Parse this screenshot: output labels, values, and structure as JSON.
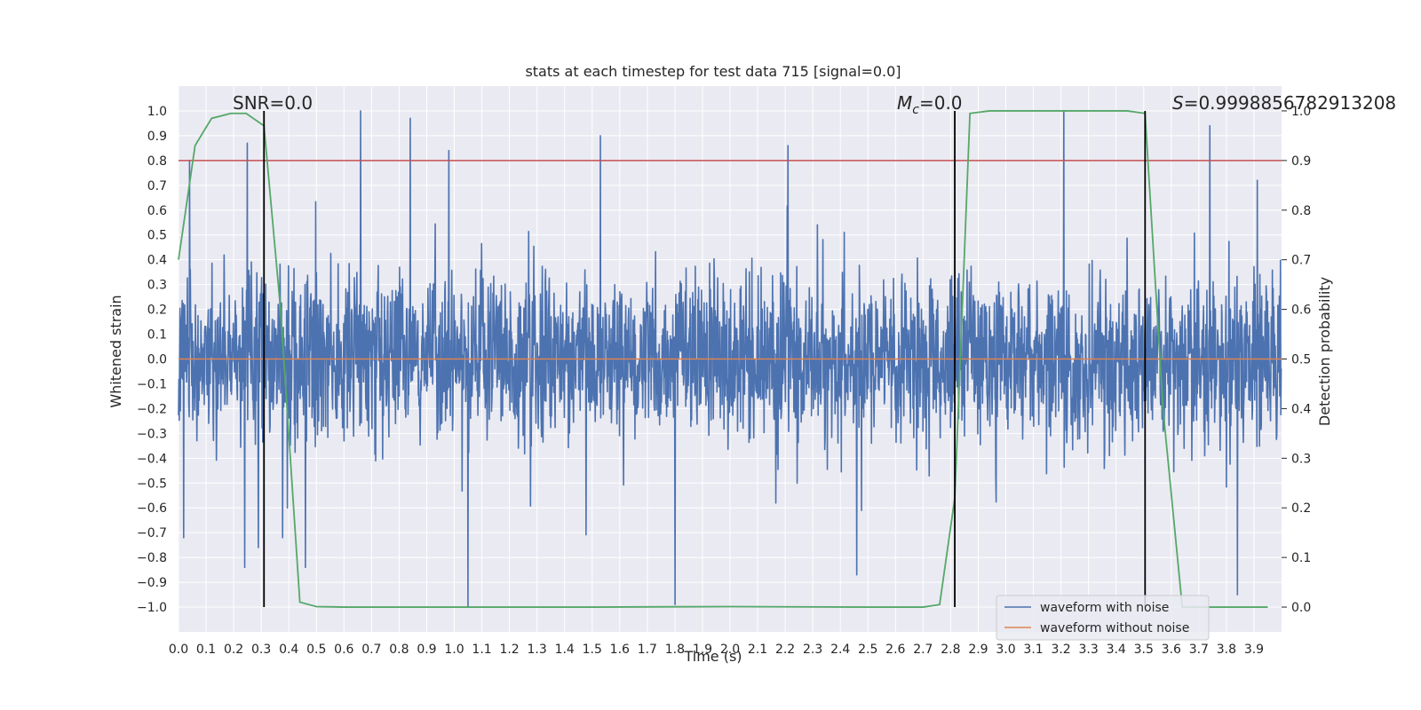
{
  "chart_data": {
    "type": "line",
    "title": "stats at each timestep for test data 715 [signal=0.0]",
    "xlabel": "Time (s)",
    "ylabel": "Whitened strain",
    "y2label": "Detection probability",
    "xlim": [
      0.0,
      4.0
    ],
    "ylim": [
      -1.1,
      1.1
    ],
    "y2lim": [
      -0.05,
      1.05
    ],
    "grid": true,
    "legend_position": "lower-right",
    "x_ticks": [
      "0.0",
      "0.1",
      "0.2",
      "0.3",
      "0.4",
      "0.5",
      "0.6",
      "0.7",
      "0.8",
      "0.9",
      "1.0",
      "1.1",
      "1.2",
      "1.3",
      "1.4",
      "1.5",
      "1.6",
      "1.7",
      "1.8",
      "1.9",
      "2.0",
      "2.1",
      "2.2",
      "2.3",
      "2.4",
      "2.5",
      "2.6",
      "2.7",
      "2.8",
      "2.9",
      "3.0",
      "3.1",
      "3.2",
      "3.3",
      "3.4",
      "3.5",
      "3.6",
      "3.7",
      "3.8",
      "3.9"
    ],
    "y_ticks": [
      "−1.0",
      "−0.9",
      "−0.8",
      "−0.7",
      "−0.6",
      "−0.5",
      "−0.4",
      "−0.3",
      "−0.2",
      "−0.1",
      "0.0",
      "0.1",
      "0.2",
      "0.3",
      "0.4",
      "0.5",
      "0.6",
      "0.7",
      "0.8",
      "0.9",
      "1.0"
    ],
    "y2_ticks": [
      "0.0",
      "0.1",
      "0.2",
      "0.3",
      "0.4",
      "0.5",
      "0.6",
      "0.7",
      "0.8",
      "0.9",
      "1.0"
    ],
    "annotations": {
      "snr": "SNR=0.0",
      "mc_symbol": "M",
      "mc_subscript": "c",
      "mc_value": "=0.0",
      "s_symbol": "S",
      "s_value": "=0.9998856782913208"
    },
    "vertical_markers_x": [
      0.31,
      2.815,
      3.505
    ],
    "threshold_probability": 0.9,
    "series": [
      {
        "name": "waveform with noise",
        "color": "#4c72b0",
        "style": "dense noise, mostly within ±0.4 with spikes to about ±1.0",
        "notable_peaks": [
          {
            "x": 0.04,
            "y": 0.8
          },
          {
            "x": 0.24,
            "y": -0.84
          },
          {
            "x": 0.25,
            "y": 0.87
          },
          {
            "x": 0.29,
            "y": -0.76
          },
          {
            "x": 0.46,
            "y": -0.84
          },
          {
            "x": 0.66,
            "y": 1.0
          },
          {
            "x": 0.84,
            "y": 0.97
          },
          {
            "x": 0.98,
            "y": 0.84
          },
          {
            "x": 1.05,
            "y": -1.0
          },
          {
            "x": 1.53,
            "y": 0.9
          },
          {
            "x": 1.8,
            "y": -0.99
          },
          {
            "x": 2.21,
            "y": 0.86
          },
          {
            "x": 2.46,
            "y": -0.87
          },
          {
            "x": 3.21,
            "y": 1.0
          },
          {
            "x": 3.74,
            "y": 0.94
          },
          {
            "x": 3.84,
            "y": -0.95
          }
        ]
      },
      {
        "name": "waveform without noise",
        "color": "#dd8452",
        "x": [
          0.0,
          4.0
        ],
        "y": [
          0.0,
          0.0
        ]
      },
      {
        "name": "detection probability",
        "color": "#55a868",
        "axis": "right",
        "x": [
          0.0,
          0.06,
          0.12,
          0.19,
          0.245,
          0.31,
          0.37,
          0.44,
          0.5,
          0.6,
          0.8,
          1.0,
          1.5,
          2.0,
          2.5,
          2.7,
          2.76,
          2.815,
          2.87,
          2.94,
          3.0,
          3.2,
          3.4,
          3.44,
          3.505,
          3.57,
          3.64,
          3.7,
          3.8,
          3.95
        ],
        "y": [
          0.7,
          0.93,
          0.985,
          0.995,
          0.995,
          0.97,
          0.6,
          0.01,
          0.001,
          0.0,
          0.0,
          0.0,
          0.0,
          0.001,
          0.0,
          0.0,
          0.005,
          0.22,
          0.995,
          1.0,
          1.0,
          1.0,
          1.0,
          1.0,
          0.995,
          0.4,
          0.0,
          0.0,
          0.0,
          0.0
        ]
      },
      {
        "name": "threshold",
        "color": "#c44e52",
        "axis": "right",
        "x": [
          0.0,
          4.0
        ],
        "y": [
          0.9,
          0.9
        ]
      }
    ],
    "legend": [
      "waveform with noise",
      "waveform without noise"
    ],
    "colors": {
      "background": "#eaeaf2",
      "grid": "#ffffff",
      "marker": "#000000"
    }
  }
}
